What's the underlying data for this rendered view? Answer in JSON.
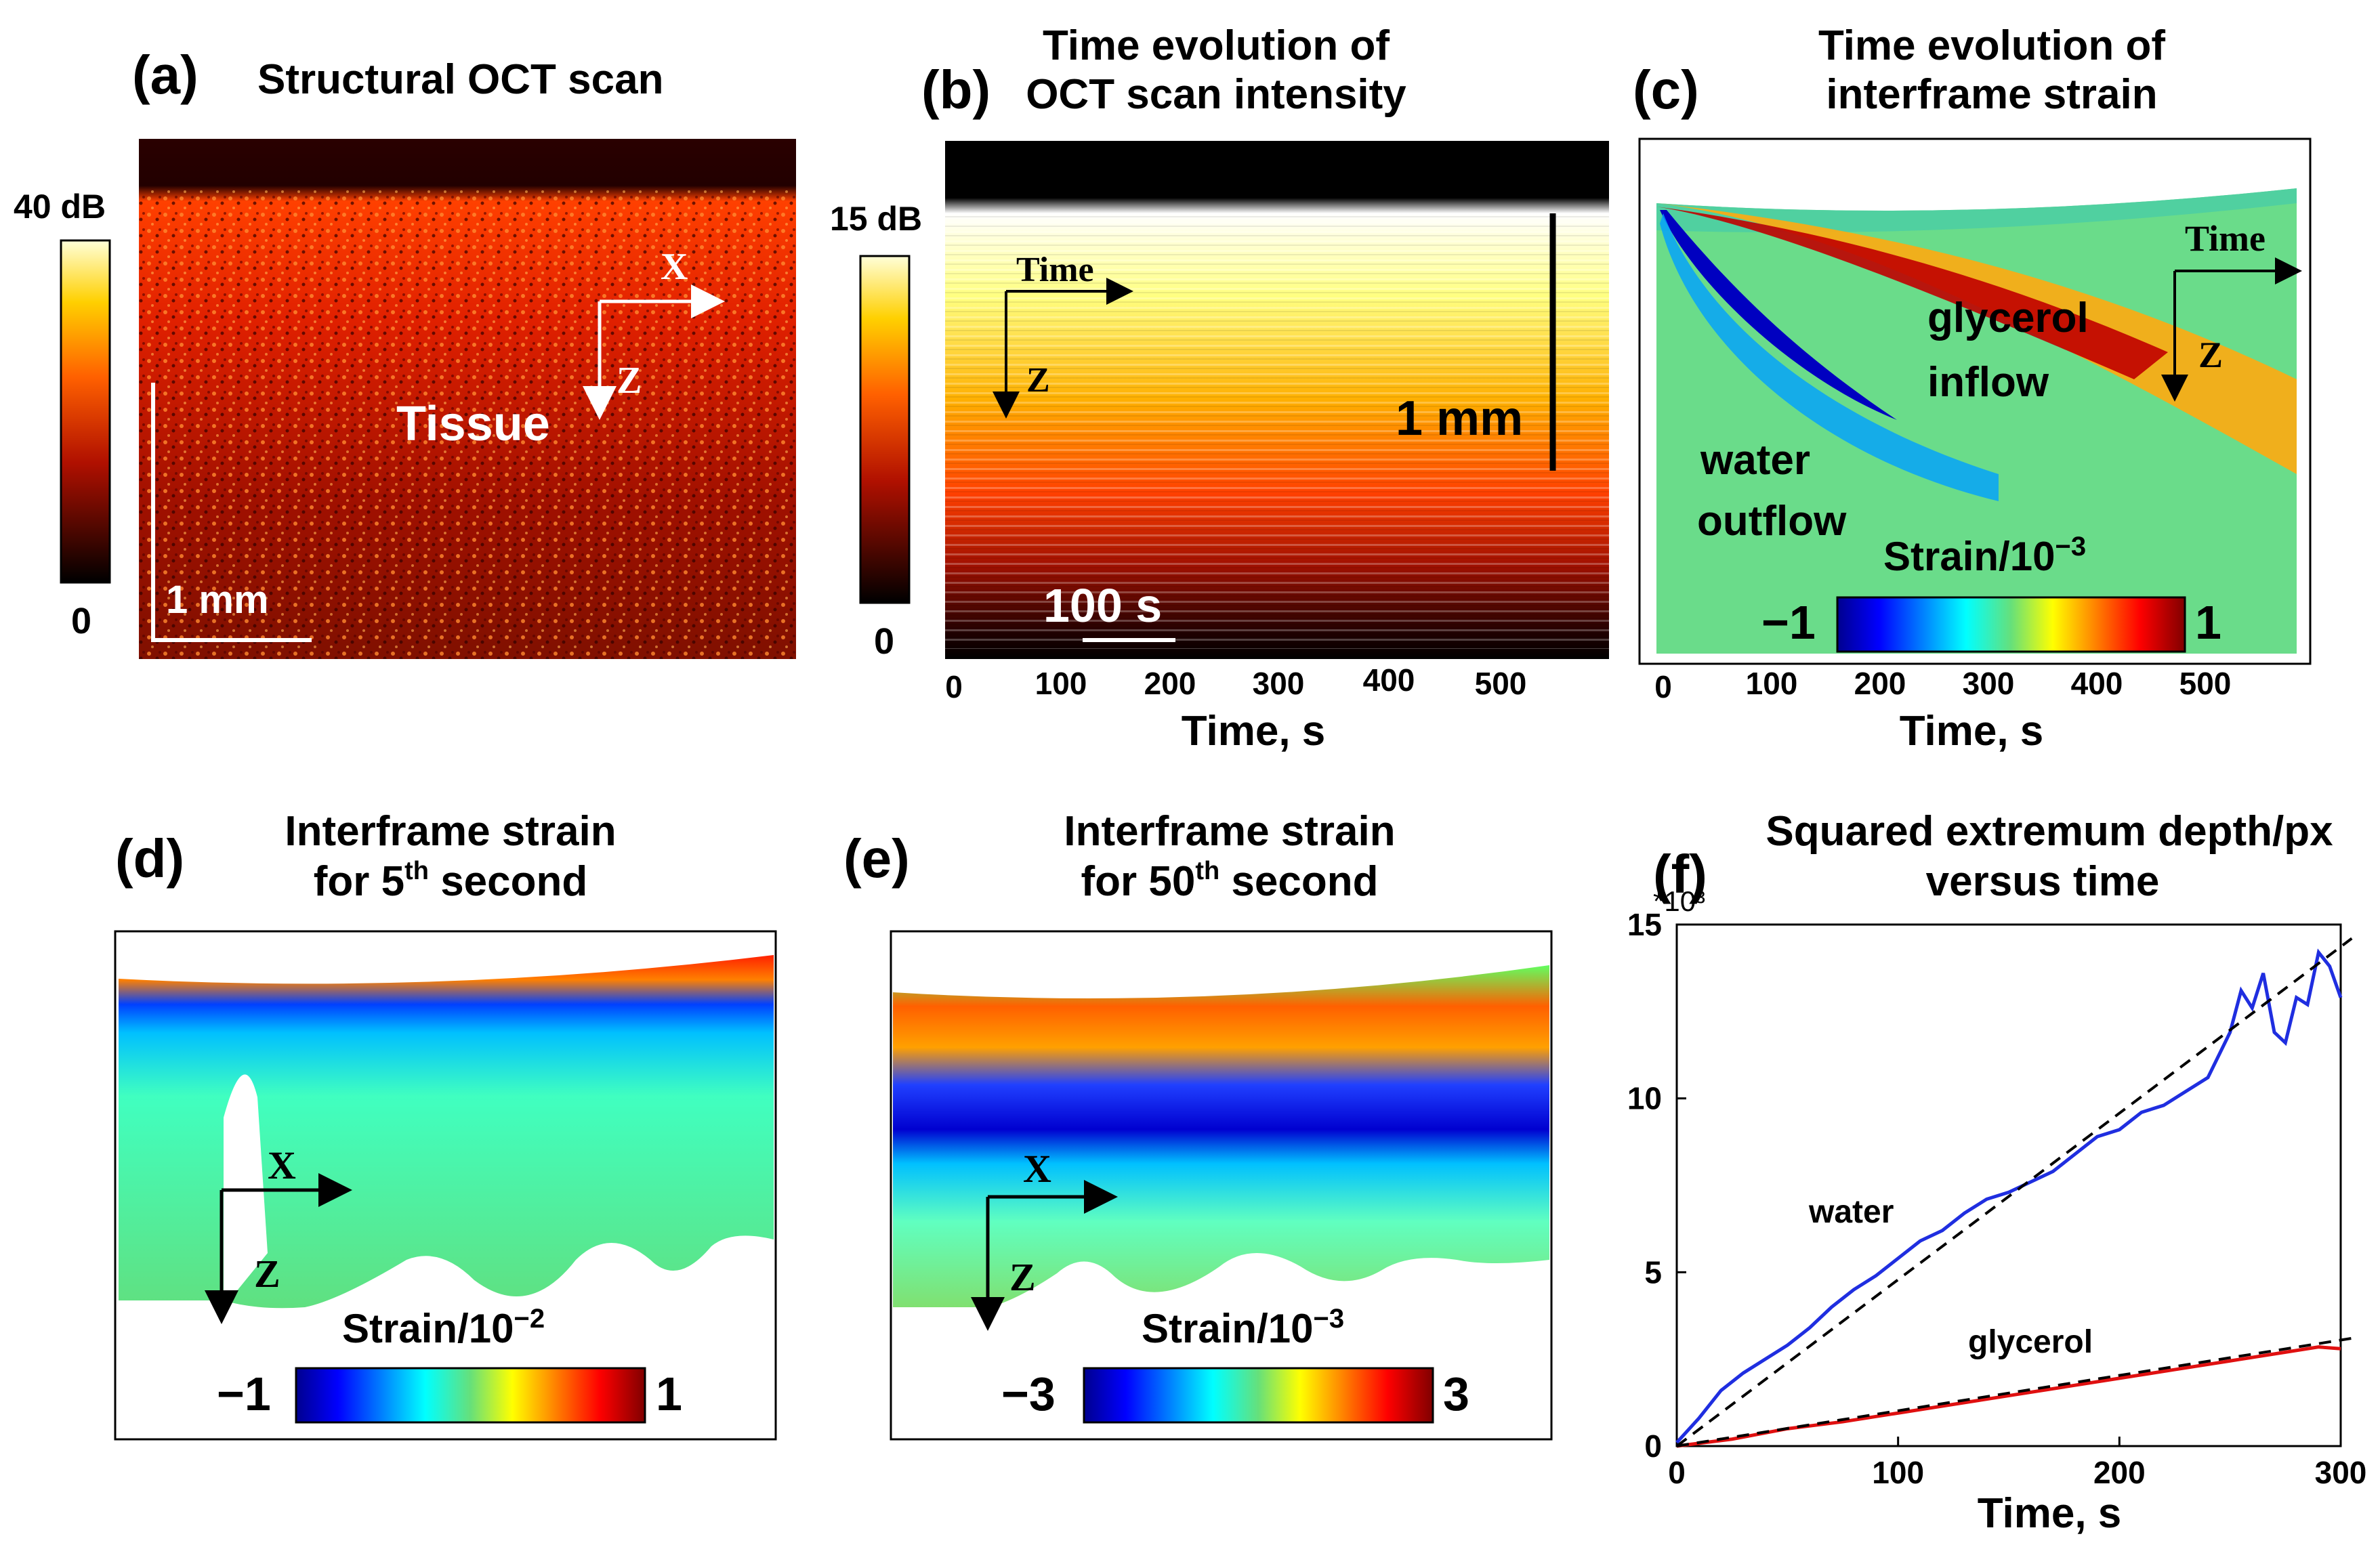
{
  "colors": {
    "hot_black": "#000000",
    "hot_red": "#d21405",
    "hot_orange": "#ff7a00",
    "hot_yellow": "#ffff66",
    "jet_darkblue": "#00008f",
    "jet_blue": "#0000ff",
    "jet_cyan": "#00ffff",
    "jet_green": "#66e07a",
    "jet_yellow": "#ffff00",
    "jet_red": "#ff0000",
    "jet_darkred": "#800000",
    "water_line": "#1f2ee0",
    "glycerol_line": "#e01010",
    "fit_line": "#000000"
  },
  "panel_a": {
    "letter": "(a)",
    "title": "Structural OCT scan",
    "cbar_top": "40 dB",
    "cbar_bottom": "0",
    "scalebar": "1 mm",
    "axis_x": "X",
    "axis_z": "Z",
    "region_label": "Tissue"
  },
  "panel_b": {
    "letter": "(b)",
    "title_line1": "Time evolution of",
    "title_line2": "OCT scan intensity",
    "cbar_top": "15 dB",
    "cbar_bottom": "0",
    "axis_time": "Time",
    "axis_z": "Z",
    "depth_bar": "1 mm",
    "time_bar": "100 s",
    "xticks": [
      "0",
      "100",
      "200",
      "300",
      "400",
      "500"
    ],
    "xlabel": "Time,  s"
  },
  "panel_c": {
    "letter": "(c)",
    "title_line1": "Time evolution of",
    "title_line2": "interframe strain",
    "axis_time": "Time",
    "axis_z": "Z",
    "label_glycerol_1": "glycerol",
    "label_glycerol_2": "inflow",
    "label_water_1": "water",
    "label_water_2": "outflow",
    "cbar_title": "Strain/10",
    "cbar_exp": "−3",
    "cbar_min": "−1",
    "cbar_max": "1",
    "xticks": [
      "0",
      "100",
      "200",
      "300",
      "400",
      "500"
    ],
    "xlabel": "Time,  s"
  },
  "panel_d": {
    "letter": "(d)",
    "title_line1": "Interframe strain",
    "title_line2_pre": "for 5",
    "title_sup": "th",
    "title_line2_post": " second",
    "axis_x": "X",
    "axis_z": "Z",
    "cbar_title": "Strain/10",
    "cbar_exp": "−2",
    "cbar_min": "−1",
    "cbar_max": "1"
  },
  "panel_e": {
    "letter": "(e)",
    "title_line1": "Interframe strain",
    "title_line2_pre": "for 50",
    "title_sup": "th",
    "title_line2_post": " second",
    "axis_x": "X",
    "axis_z": "Z",
    "cbar_title": "Strain/10",
    "cbar_exp": "−3",
    "cbar_min": "−3",
    "cbar_max": "3"
  },
  "panel_f": {
    "letter": "(f)",
    "title_line1": "Squared extremum depth/px",
    "title_line2": "versus time",
    "multiplier": "*10³",
    "label_water": "water",
    "label_glycerol": "glycerol"
  },
  "chart_data": {
    "type": "line",
    "title": "Squared extremum depth/px versus time",
    "xlabel": "Time,  s",
    "ylabel": "",
    "y_multiplier": "*10³",
    "xlim": [
      0,
      300
    ],
    "ylim": [
      0,
      15
    ],
    "xticks": [
      0,
      100,
      200,
      300
    ],
    "yticks": [
      0,
      5,
      10,
      15
    ],
    "series": [
      {
        "name": "water",
        "x": [
          0,
          10,
          20,
          30,
          40,
          50,
          60,
          70,
          80,
          90,
          100,
          110,
          120,
          130,
          140,
          150,
          160,
          170,
          180,
          190,
          200,
          210,
          220,
          230,
          240,
          250,
          255,
          260,
          265,
          270,
          275,
          280,
          285,
          290,
          295,
          300
        ],
        "y": [
          0.1,
          0.8,
          1.6,
          2.1,
          2.5,
          2.9,
          3.4,
          4.0,
          4.5,
          4.9,
          5.4,
          5.9,
          6.2,
          6.7,
          7.1,
          7.3,
          7.6,
          7.9,
          8.4,
          8.9,
          9.1,
          9.6,
          9.8,
          10.2,
          10.6,
          11.9,
          13.1,
          12.6,
          13.6,
          11.9,
          11.6,
          12.9,
          12.7,
          14.2,
          13.8,
          12.9
        ]
      },
      {
        "name": "glycerol",
        "x": [
          0,
          25,
          50,
          75,
          100,
          125,
          150,
          175,
          200,
          225,
          250,
          275,
          290,
          300
        ],
        "y": [
          0.0,
          0.2,
          0.5,
          0.7,
          0.95,
          1.2,
          1.45,
          1.7,
          1.95,
          2.2,
          2.45,
          2.7,
          2.85,
          2.8
        ]
      },
      {
        "name": "water fit",
        "style": "dashed",
        "x": [
          0,
          305
        ],
        "y": [
          0,
          14.6
        ]
      },
      {
        "name": "glycerol fit",
        "style": "dashed",
        "x": [
          0,
          305
        ],
        "y": [
          0,
          3.1
        ]
      }
    ]
  }
}
